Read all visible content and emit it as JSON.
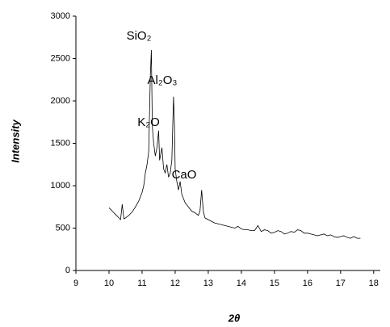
{
  "chart_data": {
    "type": "line",
    "y_label": "Intensity",
    "x_label": "2θ",
    "annotations": [
      "SiO₂",
      "Al₂O₃",
      "K₂O",
      "CaO"
    ],
    "x": [
      10.0,
      10.1,
      10.2,
      10.3,
      10.35,
      10.4,
      10.45,
      10.5,
      10.6,
      10.7,
      10.8,
      10.9,
      11.0,
      11.05,
      11.1,
      11.15,
      11.2,
      11.25,
      11.28,
      11.31,
      11.35,
      11.4,
      11.45,
      11.5,
      11.53,
      11.6,
      11.65,
      11.7,
      11.75,
      11.8,
      11.85,
      11.9,
      11.95,
      11.98,
      12.0,
      12.05,
      12.1,
      12.15,
      12.2,
      12.3,
      12.4,
      12.5,
      12.6,
      12.7,
      12.75,
      12.8,
      12.85,
      12.9,
      13.0,
      13.1,
      13.2,
      13.3,
      13.4,
      13.5,
      13.6,
      13.7,
      13.8,
      13.9,
      14.0,
      14.1,
      14.2,
      14.3,
      14.4,
      14.5,
      14.6,
      14.7,
      14.8,
      14.9,
      15.0,
      15.1,
      15.2,
      15.3,
      15.4,
      15.5,
      15.6,
      15.7,
      15.8,
      15.9,
      16.0,
      16.1,
      16.2,
      16.3,
      16.4,
      16.5,
      16.6,
      16.7,
      16.8,
      16.9,
      17.0,
      17.1,
      17.2,
      17.3,
      17.4,
      17.5,
      17.6
    ],
    "values": [
      740,
      700,
      660,
      620,
      600,
      780,
      610,
      620,
      650,
      690,
      750,
      820,
      920,
      1000,
      1150,
      1250,
      1400,
      2300,
      2600,
      1700,
      1500,
      1350,
      1450,
      1650,
      1300,
      1450,
      1200,
      1150,
      1250,
      1100,
      1150,
      1300,
      2050,
      1700,
      1200,
      1050,
      950,
      1050,
      900,
      800,
      750,
      700,
      680,
      650,
      700,
      950,
      700,
      620,
      600,
      580,
      560,
      550,
      540,
      530,
      520,
      510,
      500,
      520,
      490,
      480,
      480,
      470,
      470,
      530,
      460,
      480,
      470,
      440,
      450,
      470,
      460,
      430,
      440,
      460,
      450,
      480,
      470,
      440,
      440,
      430,
      420,
      410,
      420,
      430,
      410,
      420,
      400,
      390,
      400,
      410,
      390,
      380,
      400,
      380,
      380
    ],
    "color": "#000000",
    "xlim": [
      9,
      18.2
    ],
    "xticks": [
      9,
      10,
      11,
      12,
      13,
      14,
      15,
      16,
      17,
      18
    ],
    "ylim": [
      0,
      3000
    ],
    "yticks": [
      0,
      500,
      1000,
      1500,
      2000,
      2500,
      3000
    ]
  }
}
